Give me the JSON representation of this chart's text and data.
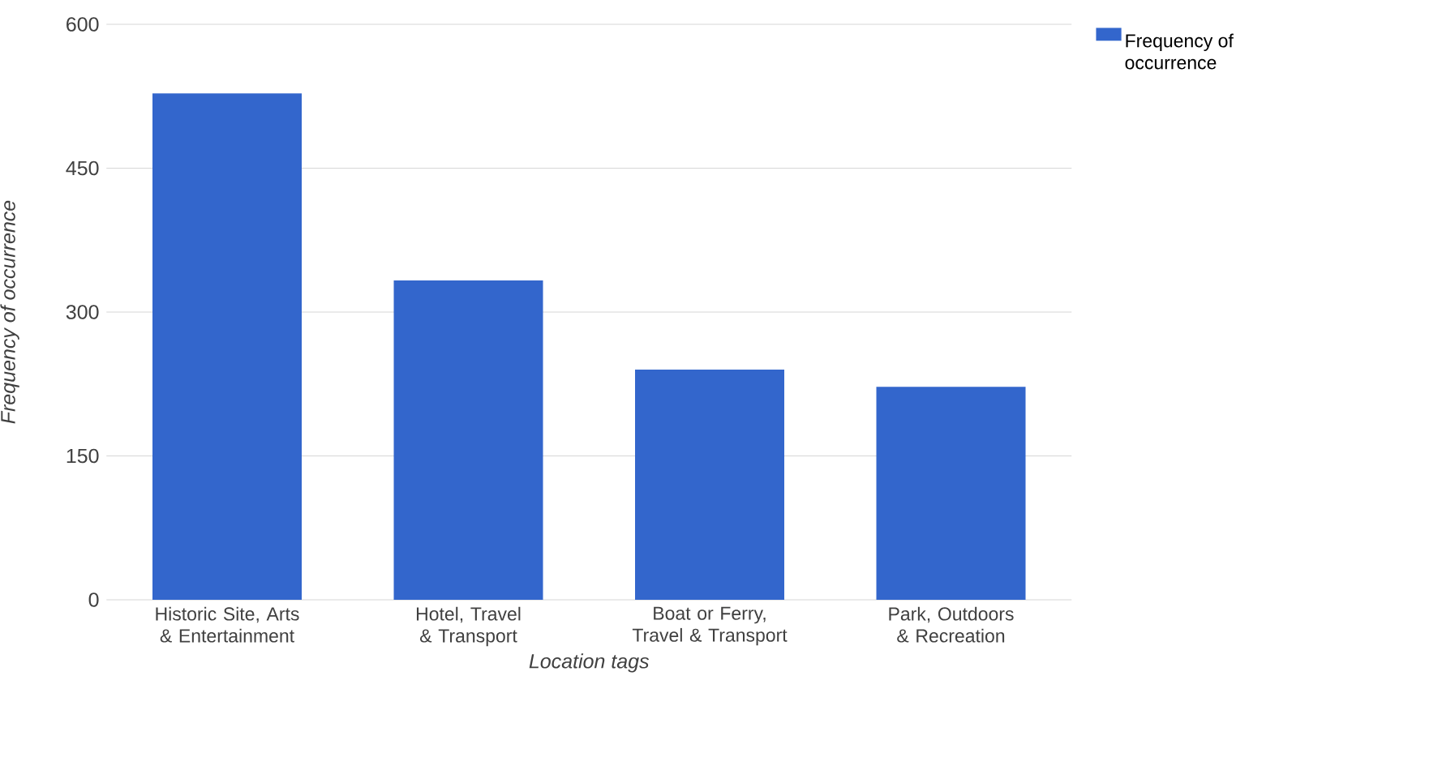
{
  "chart_data": {
    "type": "bar",
    "xlabel": "Location tags",
    "ylabel": "Frequency of occurrence",
    "categories": [
      "Historic Site, Arts & Entertainment",
      "Hotel, Travel & Transport",
      "Boat or Ferry, Travel & Transport",
      "Park, Outdoors & Recreation"
    ],
    "series": [
      {
        "name": "Frequency of occurrence",
        "color": "#3366cc",
        "values": [
          528,
          333,
          240,
          222
        ]
      }
    ],
    "ylim": [
      0,
      600
    ],
    "yticks": [
      0,
      150,
      300,
      450,
      600
    ],
    "grid": "y",
    "legend": "top right"
  }
}
